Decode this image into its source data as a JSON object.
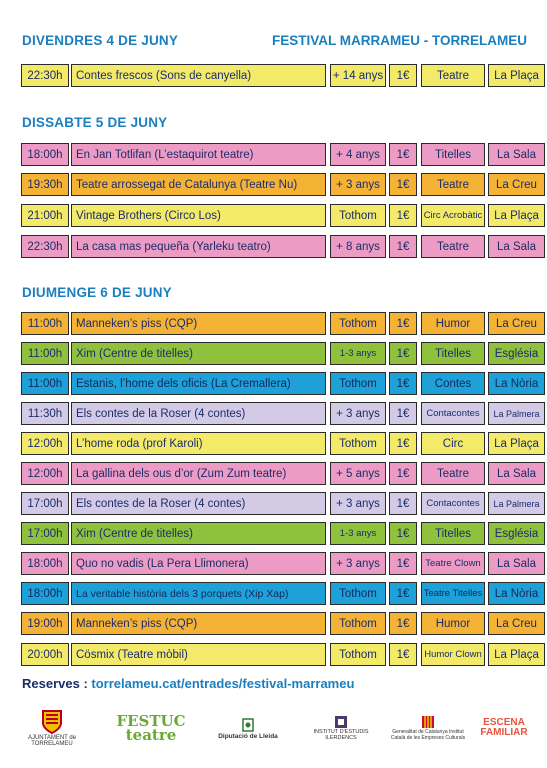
{
  "festival_title": "FESTIVAL MARRAMEU - TORRELAMEU",
  "colors": {
    "yellow": "#f3ea6a",
    "pink": "#ec9cc4",
    "orange": "#f5b335",
    "green": "#8fc13c",
    "blue": "#1ea0d9",
    "lavender": "#d3cbe6",
    "heading": "#1b7fbf"
  },
  "sections": [
    {
      "title": "DIVENDRES 4 DE JUNY",
      "rows": [
        {
          "time": "22:30h",
          "title": "Contes frescos  (Sons de canyella)",
          "age": "+ 14 anys",
          "price": "1€",
          "type": "Teatre",
          "place": "La Plaça",
          "color": "yellow"
        }
      ]
    },
    {
      "title": "DISSABTE 5 DE JUNY",
      "rows": [
        {
          "time": "18:00h",
          "title": "En Jan Totlifan (L’estaquirot teatre)",
          "age": "+ 4 anys",
          "price": "1€",
          "type": "Titelles",
          "place": "La Sala",
          "color": "pink"
        },
        {
          "time": "19:30h",
          "title": "Teatre arrossegat de Catalunya (Teatre Nu)",
          "age": "+ 3 anys",
          "price": "1€",
          "type": "Teatre",
          "place": "La Creu",
          "color": "orange"
        },
        {
          "time": "21:00h",
          "title": "Vintage Brothers (Circo Los)",
          "age": "Tothom",
          "price": "1€",
          "type": "Circ Acrobàtic",
          "place": "La Plaça",
          "color": "yellow"
        },
        {
          "time": "22:30h",
          "title": "La casa mas pequeña  (Yarleku teatro)",
          "age": "+ 8 anys",
          "price": "1€",
          "type": "Teatre",
          "place": "La Sala",
          "color": "pink"
        }
      ]
    },
    {
      "title": "DIUMENGE 6 DE JUNY",
      "rows": [
        {
          "time": "11:00h",
          "title": "Manneken’s piss (CQP)",
          "age": "Tothom",
          "price": "1€",
          "type": "Humor",
          "place": "La Creu",
          "color": "orange"
        },
        {
          "time": "11:00h",
          "title": "Xim (Centre de titelles)",
          "age": "1-3 anys",
          "price": "1€",
          "type": "Titelles",
          "place": "Església",
          "color": "green"
        },
        {
          "time": "11:00h",
          "title": "Estanis, l’home dels oficis (La Cremallera)",
          "age": "Tothom",
          "price": "1€",
          "type": "Contes",
          "place": "La Nòria",
          "color": "blue"
        },
        {
          "time": "11:30h",
          "title": "Els contes de la Roser (4 contes)",
          "age": "+ 3 anys",
          "price": "1€",
          "type": "Contacontes",
          "place": "La Palmera",
          "color": "lavender"
        },
        {
          "time": "12:00h",
          "title": "L’home roda (prof Karoli)",
          "age": "Tothom",
          "price": "1€",
          "type": "Circ",
          "place": "La Plaça",
          "color": "yellow"
        },
        {
          "time": "12:00h",
          "title": "La gallina dels ous d’or (Zum Zum teatre)",
          "age": "+ 5 anys",
          "price": "1€",
          "type": "Teatre",
          "place": "La Sala",
          "color": "pink"
        },
        {
          "time": "17:00h",
          "title": "Els contes de la Roser (4 contes)",
          "age": "+ 3 anys",
          "price": "1€",
          "type": "Contacontes",
          "place": "La Palmera",
          "color": "lavender"
        },
        {
          "time": "17:00h",
          "title": "Xim (Centre de titelles)",
          "age": "1-3 anys",
          "price": "1€",
          "type": "Titelles",
          "place": "Església",
          "color": "green"
        },
        {
          "time": "18:00h",
          "title": "Quo no vadis (La Pera Llimonera)",
          "age": "+ 3 anys",
          "price": "1€",
          "type": "Teatre Clown",
          "place": "La Sala",
          "color": "pink"
        },
        {
          "time": "18:00h",
          "title": "La veritable història dels 3 porquets (Xip Xap)",
          "age": "Tothom",
          "price": "1€",
          "type": "Teatre Titelles",
          "place": "La Nòria",
          "color": "blue"
        },
        {
          "time": "19:00h",
          "title": "Manneken’s piss (CQP)",
          "age": "Tothom",
          "price": "1€",
          "type": "Humor",
          "place": "La Creu",
          "color": "orange"
        },
        {
          "time": "20:00h",
          "title": "Cösmix (Teatre mòbil)",
          "age": "Tothom",
          "price": "1€",
          "type": "Humor Clown",
          "place": "La Plaça",
          "color": "yellow"
        }
      ]
    }
  ],
  "reserves": {
    "label": "Reserves :",
    "url": "torrelameu.cat/entrades/festival-marrameu"
  },
  "logos": [
    {
      "name": "ajuntament",
      "text": "AJUNTAMENT de TORRELAMEU"
    },
    {
      "name": "festuc",
      "text": "FESTUC teatre"
    },
    {
      "name": "diputacio",
      "text": "Diputació de Lleida"
    },
    {
      "name": "institut",
      "text": "INSTITUT D'ESTUDIS ILERDENCS"
    },
    {
      "name": "generalitat",
      "text": "Generalitat de Catalunya Institut Català de les Empreses Culturals"
    },
    {
      "name": "escena",
      "text": "ESCENA FAMILIAR"
    }
  ]
}
